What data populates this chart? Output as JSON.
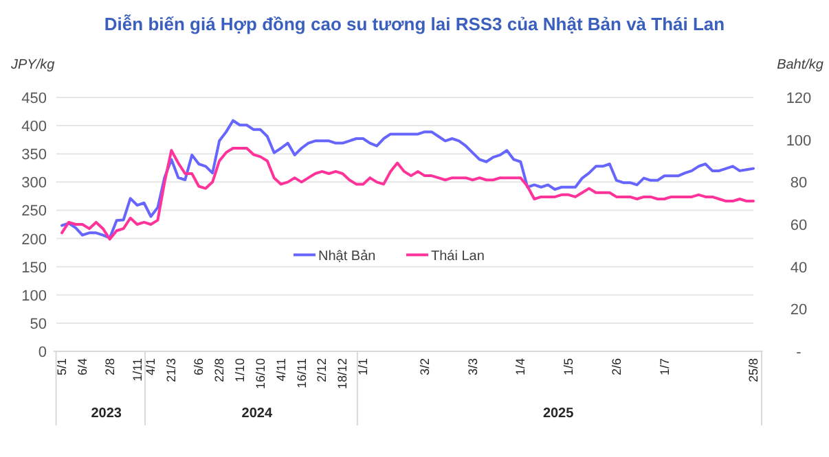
{
  "chart_data": {
    "type": "line",
    "title": "Diễn biến giá Hợp đồng cao su tương lai RSS3 của Nhật Bản và Thái Lan",
    "ylabel": "JPY/kg",
    "y2label": "Baht/kg",
    "categories": [
      "5/1",
      null,
      null,
      "6/4",
      null,
      null,
      null,
      "2/8",
      null,
      null,
      null,
      "1/11",
      null,
      "4/1",
      null,
      null,
      "21/3",
      null,
      null,
      null,
      "6/6",
      null,
      null,
      "22/8",
      null,
      null,
      "1/10",
      null,
      null,
      "16/10",
      null,
      null,
      "4/11",
      null,
      null,
      "16/11",
      null,
      null,
      "2/12",
      null,
      null,
      "18/12",
      null,
      null,
      "1/1",
      null,
      null,
      null,
      null,
      null,
      null,
      null,
      null,
      "3/2",
      null,
      null,
      null,
      null,
      null,
      null,
      "3/3",
      null,
      null,
      null,
      null,
      null,
      null,
      "1/4",
      null,
      null,
      null,
      null,
      null,
      null,
      "1/5",
      null,
      null,
      null,
      null,
      null,
      null,
      "2/6",
      null,
      null,
      null,
      null,
      null,
      null,
      "1/7",
      null,
      null,
      null,
      null,
      null,
      null,
      null,
      null,
      null,
      null,
      null,
      null,
      "25/8"
    ],
    "series": [
      {
        "name": "Nhật Bản",
        "color": "#6666ff",
        "values": [
          223,
          227,
          219,
          206,
          210,
          210,
          206,
          201,
          232,
          233,
          271,
          259,
          263,
          239,
          255,
          308,
          340,
          308,
          304,
          348,
          332,
          328,
          316,
          373,
          389,
          409,
          401,
          401,
          393,
          393,
          381,
          352,
          360,
          369,
          348,
          360,
          369,
          373,
          373,
          373,
          369,
          369,
          373,
          377,
          377,
          369,
          364,
          377,
          385,
          385,
          385,
          385,
          385,
          389,
          389,
          381,
          373,
          377,
          373,
          364,
          352,
          340,
          336,
          344,
          348,
          356,
          340,
          336,
          291,
          295,
          291,
          295,
          287,
          291,
          291,
          291,
          307,
          316,
          328,
          328,
          332,
          303,
          299,
          299,
          295,
          307,
          303,
          303,
          311,
          311,
          311,
          316,
          320,
          328,
          332,
          320,
          320,
          324,
          328,
          320,
          322,
          324
        ]
      },
      {
        "name": "Thái Lan",
        "color": "#ff3399",
        "axis": "y2",
        "values": [
          56,
          61,
          60,
          60,
          58,
          61,
          58,
          53,
          57,
          58,
          63,
          60,
          61,
          60,
          62,
          80,
          95,
          89,
          84,
          84,
          78,
          77,
          80,
          90,
          94,
          96,
          96,
          96,
          93,
          92,
          90,
          82,
          79,
          80,
          82,
          80,
          82,
          84,
          85,
          84,
          85,
          84,
          81,
          79,
          79,
          82,
          80,
          79,
          85,
          89,
          85,
          83,
          85,
          83,
          83,
          82,
          81,
          82,
          82,
          82,
          81,
          82,
          81,
          81,
          82,
          82,
          82,
          82,
          78,
          72,
          73,
          73,
          73,
          74,
          74,
          73,
          75,
          77,
          75,
          75,
          75,
          73,
          73,
          73,
          72,
          73,
          73,
          72,
          72,
          73,
          73,
          73,
          73,
          74,
          73,
          73,
          72,
          71,
          71,
          72,
          71,
          71
        ]
      }
    ],
    "ylim": [
      0,
      450
    ],
    "yticks": [
      0,
      50,
      100,
      150,
      200,
      250,
      300,
      350,
      400,
      450
    ],
    "y2lim": [
      0,
      120
    ],
    "y2ticks": [
      {
        "value": 0,
        "label": "-"
      },
      20,
      40,
      60,
      80,
      100,
      120
    ],
    "annotations": [
      "2023",
      "2024",
      "2025"
    ],
    "grid": "y",
    "legend": "center",
    "line_style": "solid",
    "marker": "none"
  }
}
